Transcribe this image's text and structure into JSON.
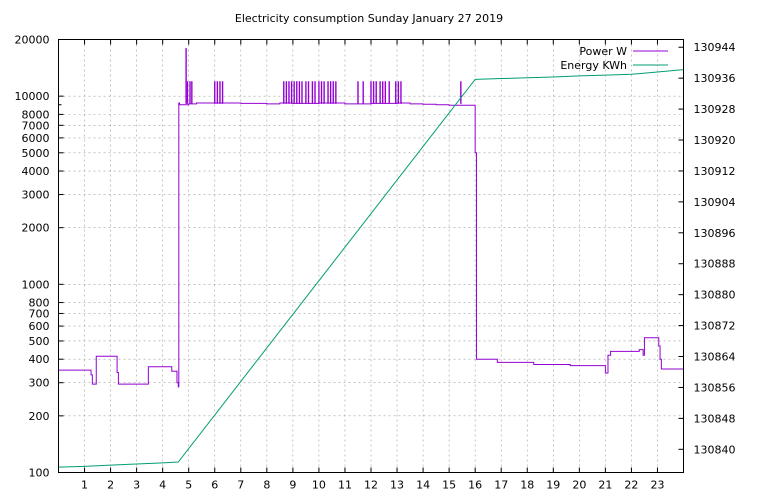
{
  "chart_data": {
    "type": "line",
    "title": "Electricity consumption Sunday January 27 2019",
    "xlim": [
      0,
      24
    ],
    "x_ticks": [
      1,
      2,
      3,
      4,
      5,
      6,
      7,
      8,
      9,
      10,
      11,
      12,
      13,
      14,
      15,
      16,
      17,
      18,
      19,
      20,
      21,
      22,
      23
    ],
    "y_left": {
      "scale": "log",
      "ylim": [
        100,
        20000
      ],
      "ticks": [
        100,
        200,
        300,
        400,
        500,
        600,
        700,
        800,
        1000,
        2000,
        3000,
        4000,
        5000,
        6000,
        7000,
        8000,
        10000,
        20000
      ]
    },
    "y_right": {
      "scale": "linear",
      "ylim": [
        130834,
        130946
      ],
      "ticks": [
        130840,
        130848,
        130856,
        130864,
        130872,
        130880,
        130888,
        130896,
        130904,
        130912,
        130920,
        130928,
        130936,
        130944
      ]
    },
    "grid": true,
    "legend_position": "top-right",
    "series": [
      {
        "name": "Power W",
        "axis": "left",
        "color": "#9400d3",
        "x": [
          0,
          1.2,
          1.25,
          1.3,
          1.45,
          2.2,
          2.25,
          2.3,
          3.4,
          3.45,
          4.3,
          4.35,
          4.5,
          4.55,
          4.6,
          4.62,
          4.65,
          5.0,
          5.3,
          7.0,
          8.0,
          8.5,
          9.0,
          10.0,
          11.0,
          12.0,
          13.0,
          13.5,
          14.0,
          14.5,
          15.0,
          15.5,
          15.95,
          16.0,
          16.05,
          16.8,
          16.85,
          18.2,
          18.25,
          19.6,
          19.65,
          21.0,
          21.05,
          21.1,
          21.2,
          22.3,
          22.35,
          22.45,
          22.5,
          22.6,
          23.0,
          23.05,
          23.1,
          23.15,
          24.0
        ],
        "y": [
          350,
          350,
          330,
          295,
          415,
          415,
          340,
          295,
          295,
          365,
          365,
          345,
          345,
          300,
          285,
          9200,
          9000,
          9100,
          9200,
          9150,
          9100,
          9200,
          9150,
          9200,
          9100,
          9150,
          9200,
          9100,
          9050,
          9000,
          8950,
          8950,
          8950,
          5000,
          400,
          400,
          385,
          385,
          375,
          375,
          370,
          338,
          338,
          420,
          440,
          450,
          450,
          420,
          520,
          520,
          520,
          470,
          400,
          355,
          355
        ]
      },
      {
        "name": "Energy KWh",
        "axis": "right",
        "color": "#009e73",
        "x": [
          0,
          1,
          2,
          3,
          4,
          4.6,
          16.0,
          17,
          18,
          19,
          20,
          21,
          22,
          23,
          24
        ],
        "y": [
          130835.4,
          130835.6,
          130835.9,
          130836.2,
          130836.5,
          130836.7,
          130935.7,
          130935.9,
          130936.1,
          130936.3,
          130936.6,
          130936.8,
          130937.0,
          130937.6,
          130938.2
        ]
      }
    ],
    "power_spikes": [
      {
        "x": 4.9,
        "y": 18000
      },
      {
        "x": 4.95,
        "y": 12000
      },
      {
        "x": 5.05,
        "y": 12000
      },
      {
        "x": 5.12,
        "y": 12000
      },
      {
        "x": 6.0,
        "y": 12000
      },
      {
        "x": 6.1,
        "y": 12000
      },
      {
        "x": 6.2,
        "y": 12000
      },
      {
        "x": 6.3,
        "y": 12000
      },
      {
        "x": 8.65,
        "y": 12000
      },
      {
        "x": 8.75,
        "y": 12000
      },
      {
        "x": 8.85,
        "y": 12000
      },
      {
        "x": 8.95,
        "y": 12000
      },
      {
        "x": 9.05,
        "y": 12000
      },
      {
        "x": 9.15,
        "y": 12000
      },
      {
        "x": 9.25,
        "y": 12000
      },
      {
        "x": 9.35,
        "y": 12000
      },
      {
        "x": 9.5,
        "y": 12000
      },
      {
        "x": 9.6,
        "y": 12000
      },
      {
        "x": 9.75,
        "y": 12000
      },
      {
        "x": 9.85,
        "y": 12000
      },
      {
        "x": 10.0,
        "y": 12000
      },
      {
        "x": 10.1,
        "y": 12000
      },
      {
        "x": 10.2,
        "y": 12000
      },
      {
        "x": 10.35,
        "y": 12000
      },
      {
        "x": 10.45,
        "y": 12000
      },
      {
        "x": 10.55,
        "y": 12000
      },
      {
        "x": 10.65,
        "y": 12000
      },
      {
        "x": 11.5,
        "y": 12000
      },
      {
        "x": 11.7,
        "y": 12000
      },
      {
        "x": 12.0,
        "y": 12000
      },
      {
        "x": 12.1,
        "y": 12000
      },
      {
        "x": 12.2,
        "y": 12000
      },
      {
        "x": 12.35,
        "y": 12000
      },
      {
        "x": 12.45,
        "y": 12000
      },
      {
        "x": 12.55,
        "y": 12000
      },
      {
        "x": 12.7,
        "y": 12000
      },
      {
        "x": 12.95,
        "y": 12000
      },
      {
        "x": 13.05,
        "y": 12000
      },
      {
        "x": 13.15,
        "y": 12000
      },
      {
        "x": 15.45,
        "y": 12000
      }
    ]
  }
}
